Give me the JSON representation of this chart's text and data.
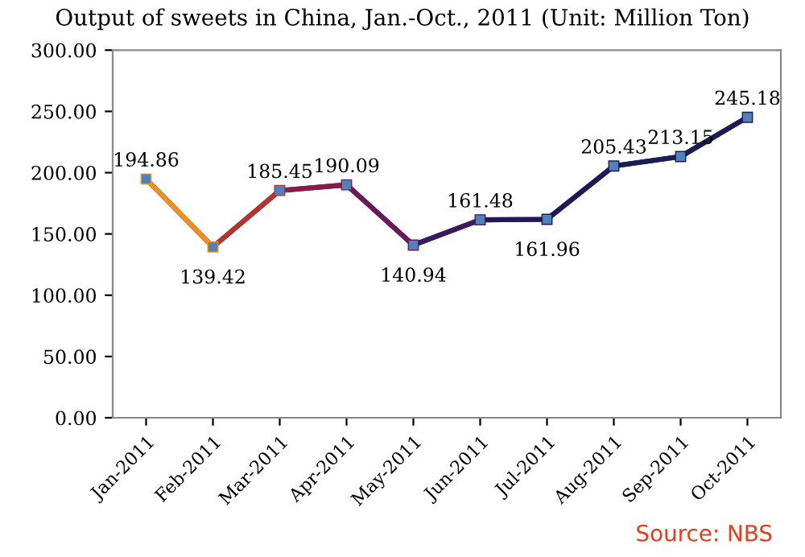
{
  "chart_data": {
    "type": "line",
    "title": "Output of sweets in China, Jan.-Oct., 2011 (Unit: Million Ton)",
    "categories": [
      "Jan-2011",
      "Feb-2011",
      "Mar-2011",
      "Apr-2011",
      "May-2011",
      "Jun-2011",
      "Jul-2011",
      "Aug-2011",
      "Sep-2011",
      "Oct-2011"
    ],
    "series": [
      {
        "color": "#4f81bd",
        "values": [
          194.86,
          139.42,
          185.45,
          190.09,
          140.94,
          161.48,
          161.96,
          205.43,
          213.15,
          245.18
        ],
        "colors": [
          "#f39a1e",
          "#f0901e",
          "#b5332e",
          "#8a1a4c",
          "#6a1a5c",
          "#3a1a5c",
          "#1f1a55",
          "#1c1c52",
          "#1c1c52",
          "#1c1c52"
        ]
      }
    ],
    "ylim": [
      0,
      300
    ],
    "yticks": [
      {
        "value": 0,
        "label": "0.00"
      },
      {
        "value": 50,
        "label": "50.00"
      },
      {
        "value": 100,
        "label": "100.00"
      },
      {
        "value": 150,
        "label": "150.00"
      },
      {
        "value": 200,
        "label": "200.00"
      },
      {
        "value": 250,
        "label": "250.00"
      },
      {
        "value": 300,
        "label": "300.00"
      }
    ],
    "marker": "square",
    "data_labels": true,
    "grid": false,
    "annotations": [
      "Source: NBS"
    ]
  }
}
